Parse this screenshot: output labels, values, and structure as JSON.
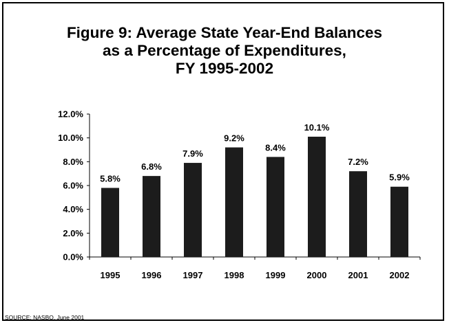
{
  "title_lines": [
    "Figure 9:  Average State Year-End Balances",
    "as a Percentage of Expenditures,",
    "FY 1995-2002"
  ],
  "source": "SOURCE:  NASBO, June 2001",
  "colors": {
    "bar": "#1c1c1c",
    "axis": "#000000",
    "background": "#ffffff"
  },
  "chart_data": {
    "type": "bar",
    "title": "Figure 9:  Average State Year-End Balances as a Percentage of Expenditures, FY 1995-2002",
    "categories": [
      "1995",
      "1996",
      "1997",
      "1998",
      "1999",
      "2000",
      "2001",
      "2002"
    ],
    "values": [
      5.8,
      6.8,
      7.9,
      9.2,
      8.4,
      10.1,
      7.2,
      5.9
    ],
    "value_labels": [
      "5.8%",
      "6.8%",
      "7.9%",
      "9.2%",
      "8.4%",
      "10.1%",
      "7.2%",
      "5.9%"
    ],
    "y_ticks": [
      "0.0%",
      "2.0%",
      "4.0%",
      "6.0%",
      "8.0%",
      "10.0%",
      "12.0%"
    ],
    "ylim": [
      0,
      12
    ],
    "xlabel": "",
    "ylabel": "",
    "grid": false,
    "legend": "none"
  }
}
